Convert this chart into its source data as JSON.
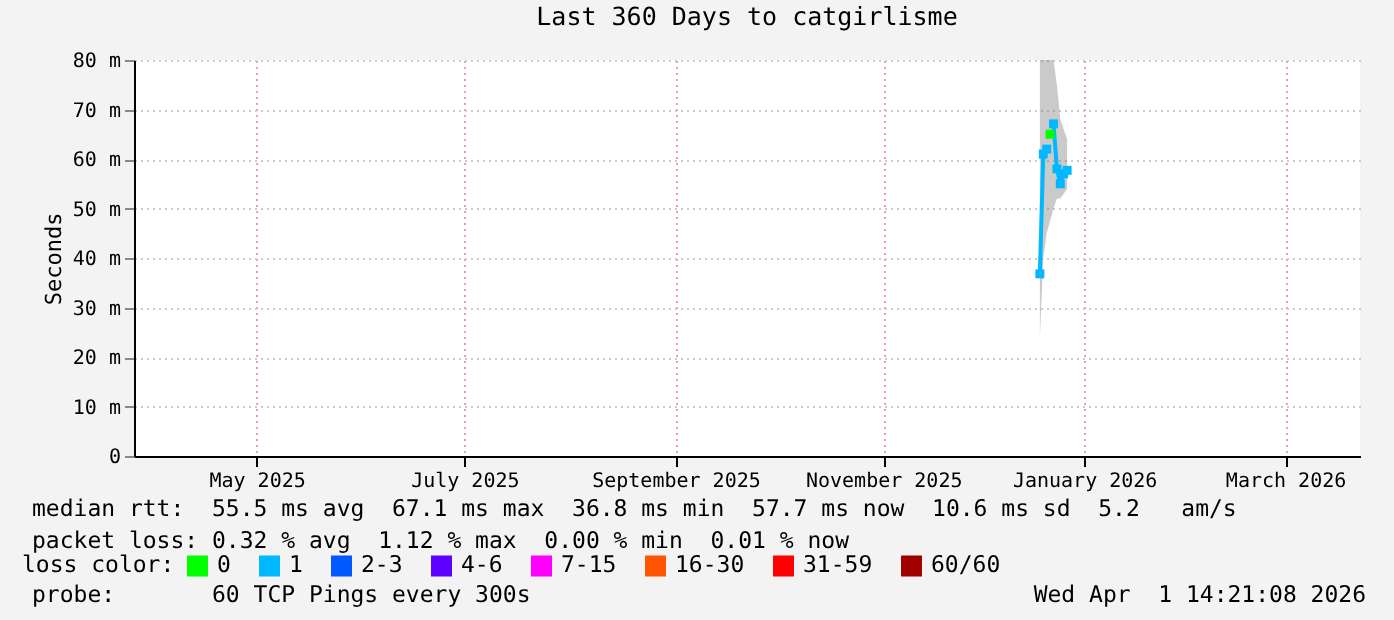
{
  "chart_data": {
    "type": "line",
    "title": "Last 360 Days to catgirlisme",
    "ylabel": "Seconds",
    "legend_title": "loss color:",
    "legend": "bottom",
    "marker": "square",
    "grid": true,
    "x": [
      "2025-12-28",
      "2025-12-29",
      "2025-12-30",
      "2025-12-31",
      "2026-01-01",
      "2026-01-02",
      "2026-01-03",
      "2026-01-04",
      "2026-01-05"
    ],
    "xlim": [
      "2025-04-06",
      "2026-04-01"
    ],
    "xticks": [
      {
        "value": "2025-05-12",
        "label": "May 2025"
      },
      {
        "value": "2025-07-12",
        "label": "July 2025"
      },
      {
        "value": "2025-09-12",
        "label": "September 2025"
      },
      {
        "value": "2025-11-12",
        "label": "November 2025"
      },
      {
        "value": "2026-01-10",
        "label": "January 2026"
      },
      {
        "value": "2026-03-10",
        "label": "March 2026"
      }
    ],
    "ylim": [
      0,
      80
    ],
    "yticks": [
      0,
      {
        "value": 10,
        "label": "10 m"
      },
      {
        "value": 20,
        "label": "20 m"
      },
      {
        "value": 30,
        "label": "30 m"
      },
      {
        "value": 40,
        "label": "40 m"
      },
      {
        "value": 50,
        "label": "50 m"
      },
      {
        "value": 60,
        "label": "60 m"
      },
      {
        "value": 70,
        "label": "70 m"
      },
      {
        "value": 80,
        "label": "80 m"
      }
    ],
    "series": [
      {
        "name": "0",
        "color": "#00ff00",
        "values": [
          null,
          null,
          null,
          65,
          null,
          null,
          null,
          null,
          null
        ]
      },
      {
        "name": "1",
        "color": "#00b8ff",
        "values": [
          36.8,
          61,
          62,
          null,
          67.1,
          58,
          55,
          57,
          57.7
        ],
        "lower": [
          24,
          40,
          45,
          null,
          50,
          52,
          52,
          53,
          54
        ],
        "upper": [
          80,
          80,
          80,
          null,
          80,
          75,
          68,
          66,
          64
        ]
      },
      {
        "name": "2-3",
        "color": "#0059ff",
        "values": [
          null,
          null,
          null,
          null,
          null,
          null,
          null,
          null,
          null
        ]
      },
      {
        "name": "4-6",
        "color": "#5e00ff",
        "values": [
          null,
          null,
          null,
          null,
          null,
          null,
          null,
          null,
          null
        ]
      },
      {
        "name": "7-15",
        "color": "#ff00ff",
        "values": [
          null,
          null,
          null,
          null,
          null,
          null,
          null,
          null,
          null
        ]
      },
      {
        "name": "16-30",
        "color": "#ff5500",
        "values": [
          null,
          null,
          null,
          null,
          null,
          null,
          null,
          null,
          null
        ]
      },
      {
        "name": "31-59",
        "color": "#ff0000",
        "values": [
          null,
          null,
          null,
          null,
          null,
          null,
          null,
          null,
          null
        ]
      },
      {
        "name": "60/60",
        "color": "#a10000",
        "values": [
          null,
          null,
          null,
          null,
          null,
          null,
          null,
          null,
          null
        ]
      }
    ],
    "annotations": [
      "median rtt:  55.5 ms avg  67.1 ms max  36.8 ms min  57.7 ms now  10.6 ms sd  5.2   am/s",
      "packet loss: 0.32 % avg  1.12 % max  0.00 % min  0.01 % now",
      "probe:       60 TCP Pings every 300s",
      "Wed Apr  1 14:21:08 2026"
    ]
  }
}
